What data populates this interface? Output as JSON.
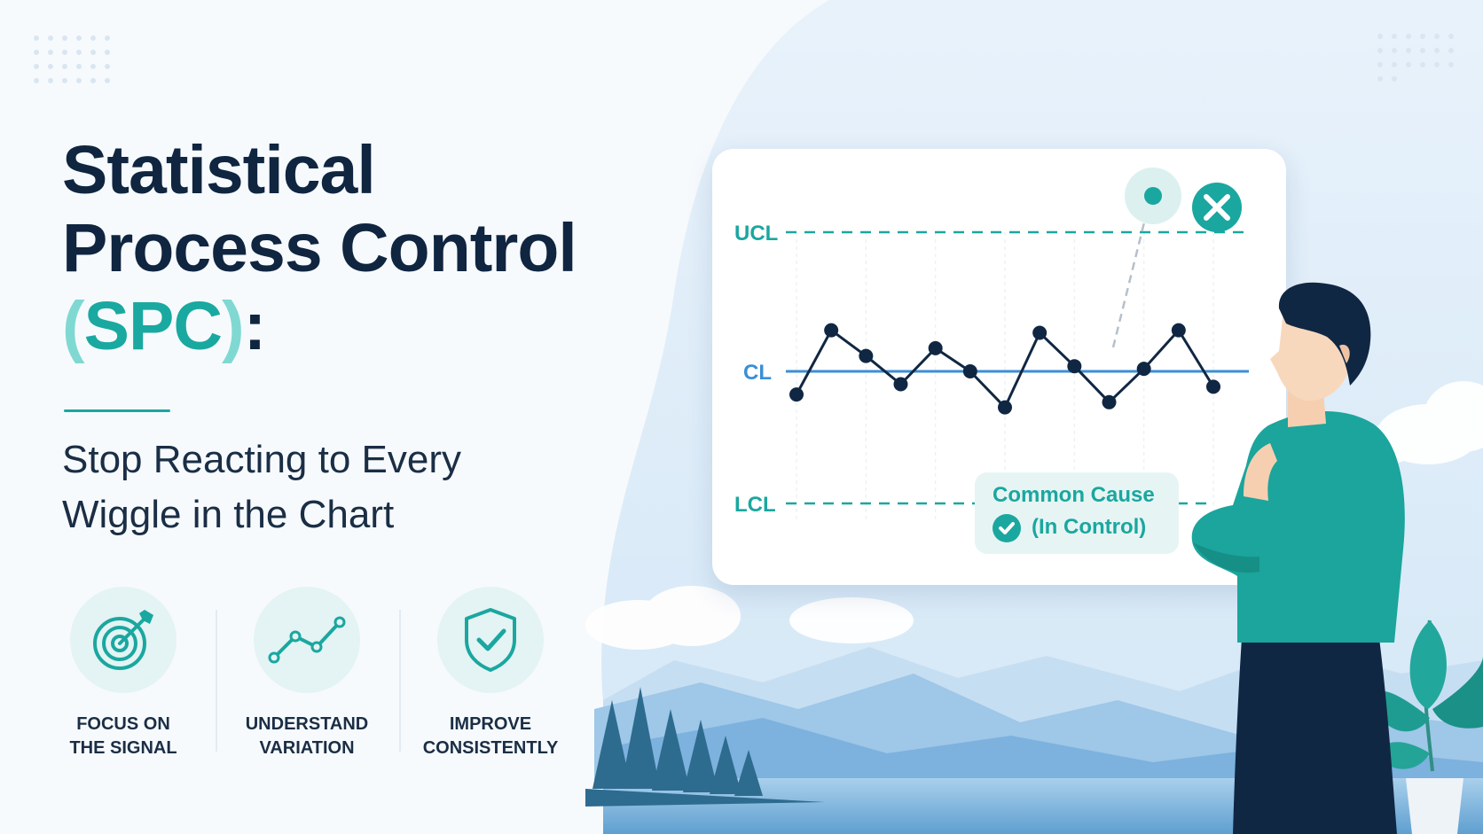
{
  "headline": {
    "line1": "Statistical",
    "line2": "Process Control",
    "paren_open": "(",
    "acronym": "SPC",
    "paren_close": ")",
    "colon": ":"
  },
  "subtitle": {
    "line1": "Stop Reacting to Every",
    "line2": "Wiggle in the Chart"
  },
  "features": [
    {
      "icon": "target-arrow-icon",
      "line1": "FOCUS ON",
      "line2": "THE SIGNAL"
    },
    {
      "icon": "trend-line-icon",
      "line1": "UNDERSTAND",
      "line2": "VARIATION"
    },
    {
      "icon": "shield-check-icon",
      "line1": "IMPROVE",
      "line2": "CONSISTENTLY"
    }
  ],
  "control_chart": {
    "ucl_label": "UCL",
    "cl_label": "CL",
    "lcl_label": "LCL",
    "status_line1": "Common Cause",
    "status_line2": "(In Control)",
    "out_of_control_marker": "x-icon"
  },
  "colors": {
    "navy": "#0f2540",
    "teal": "#1aa7a0",
    "light_teal": "#7fd9d2",
    "center_line_blue": "#3b8fd6",
    "background": "#f7fafd"
  },
  "chart_data": {
    "type": "line",
    "title": "",
    "xlabel": "",
    "ylabel": "",
    "reference_lines": [
      "UCL",
      "CL",
      "LCL"
    ],
    "in_control_values": [
      -0.45,
      0.8,
      0.3,
      -0.25,
      0.45,
      0.0,
      -0.7,
      0.75,
      0.1,
      -0.6,
      0.05,
      0.8,
      -0.3
    ],
    "out_of_control_point_above_ucl": true,
    "grid": "vertical, dashed"
  }
}
